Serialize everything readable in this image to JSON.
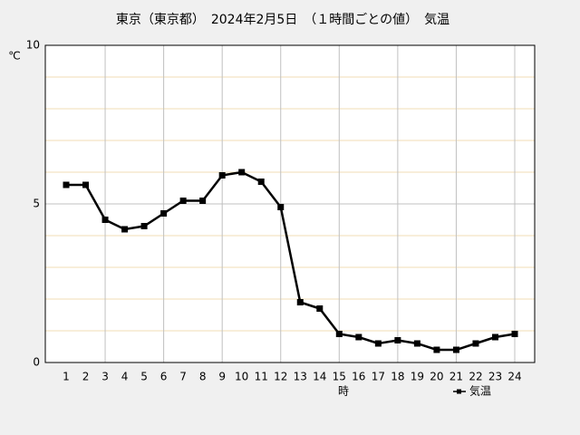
{
  "chart_data": {
    "type": "line",
    "title": "東京（東京都）　2024年2月5日　（１時間ごとの値）　気温",
    "y_label": "℃",
    "x_label": "時",
    "categories": [
      "1",
      "2",
      "3",
      "4",
      "5",
      "6",
      "7",
      "8",
      "9",
      "10",
      "11",
      "12",
      "13",
      "14",
      "15",
      "16",
      "17",
      "18",
      "19",
      "20",
      "21",
      "22",
      "23",
      "24"
    ],
    "series": [
      {
        "name": "気温",
        "color": "#000000",
        "values": [
          5.6,
          5.6,
          4.5,
          4.2,
          4.3,
          4.7,
          5.1,
          5.1,
          5.9,
          6.0,
          5.7,
          4.9,
          1.9,
          1.7,
          0.9,
          0.8,
          0.6,
          0.7,
          0.6,
          0.4,
          0.4,
          0.6,
          0.8,
          0.9
        ]
      }
    ],
    "ylim": [
      0,
      10
    ],
    "yticks": [
      0,
      5,
      10
    ],
    "minor_yticks": [
      1,
      2,
      3,
      4,
      6,
      7,
      8,
      9
    ],
    "xgrid_every": 3,
    "grid": true,
    "legend": "bottom-right"
  }
}
